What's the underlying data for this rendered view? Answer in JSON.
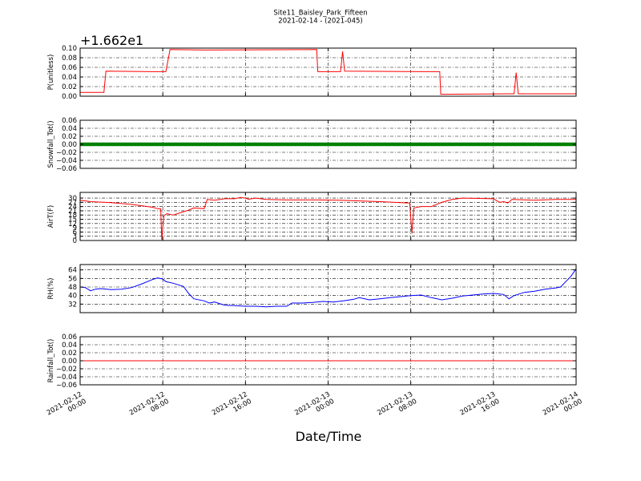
{
  "figure": {
    "title_line1": "Site11_Baisley_Park_Fifteen",
    "title_line2": "2021-02-14 - (2021-045)",
    "xlabel": "Date/Time"
  },
  "chart_data": [
    {
      "type": "line",
      "ylabel": "P(unitless)",
      "offset_text": "+1.662e1",
      "offset": 16.62,
      "ylim": [
        0.0,
        0.1
      ],
      "yticks": [
        0.0,
        0.02,
        0.04,
        0.06,
        0.08,
        0.1
      ],
      "ytick_labels": [
        "0.00",
        "0.02",
        "0.04",
        "0.06",
        "0.08",
        "0.10"
      ],
      "grid": true,
      "x": [
        0,
        1,
        2,
        3,
        4,
        5,
        6,
        7,
        8,
        9,
        10,
        11,
        12,
        13,
        14,
        15,
        16,
        17,
        18,
        19,
        20,
        21,
        22,
        23,
        24,
        25,
        26,
        27,
        28,
        29,
        30,
        31,
        32,
        33,
        34,
        35,
        36,
        37,
        38,
        39,
        40,
        41,
        42,
        43,
        44,
        45,
        46,
        47,
        48
      ],
      "series": [
        {
          "color": "#ff0000",
          "points": [
            [
              0,
              0.008
            ],
            [
              2.3,
              0.008
            ],
            [
              2.5,
              0.052
            ],
            [
              7.2,
              0.051
            ],
            [
              8.3,
              0.051
            ],
            [
              8.7,
              0.097
            ],
            [
              12.0,
              0.096
            ],
            [
              22.9,
              0.097
            ],
            [
              23.0,
              0.051
            ],
            [
              25.2,
              0.051
            ],
            [
              25.4,
              0.093
            ],
            [
              25.6,
              0.052
            ],
            [
              34.8,
              0.051
            ],
            [
              34.9,
              0.004
            ],
            [
              42.0,
              0.005
            ],
            [
              42.2,
              0.049
            ],
            [
              42.4,
              0.005
            ],
            [
              48.0,
              0.005
            ]
          ]
        }
      ]
    },
    {
      "type": "scatter",
      "ylabel": "Snowfall_Tot()",
      "ylim": [
        -0.06,
        0.06
      ],
      "yticks": [
        -0.06,
        -0.04,
        -0.02,
        0.0,
        0.02,
        0.04,
        0.06
      ],
      "ytick_labels": [
        "−0.06",
        "−0.04",
        "−0.02",
        "0.00",
        "0.02",
        "0.04",
        "0.06"
      ],
      "grid": true,
      "series": [
        {
          "color": "#008000",
          "points": [
            [
              0,
              0.0
            ],
            [
              48,
              0.0
            ]
          ]
        }
      ]
    },
    {
      "type": "line",
      "ylabel": "AirT(F)",
      "ylim": [
        0,
        34
      ],
      "yticks": [
        0,
        3,
        6,
        9,
        12,
        15,
        18,
        21,
        24,
        27,
        30
      ],
      "ytick_labels": [
        "0",
        "3",
        "6",
        "9",
        "12",
        "15",
        "18",
        "21",
        "24",
        "27",
        "30"
      ],
      "grid": true,
      "series": [
        {
          "color": "#ff0000",
          "points": [
            [
              0,
              28.5
            ],
            [
              1,
              27.5
            ],
            [
              3,
              26.8
            ],
            [
              5,
              25.5
            ],
            [
              7,
              23.5
            ],
            [
              7.5,
              22.5
            ],
            [
              7.8,
              22.3
            ],
            [
              7.9,
              0.5
            ],
            [
              8.1,
              17.5
            ],
            [
              8.4,
              19.0
            ],
            [
              9,
              18.0
            ],
            [
              10.5,
              21.5
            ],
            [
              11,
              23.0
            ],
            [
              12,
              22.5
            ],
            [
              12.3,
              29.0
            ],
            [
              13,
              28.5
            ],
            [
              14,
              29.5
            ],
            [
              15,
              29.5
            ],
            [
              15.5,
              30.5
            ],
            [
              16,
              30.0
            ],
            [
              16.3,
              29.2
            ],
            [
              17,
              30.0
            ],
            [
              18,
              29.0
            ],
            [
              20,
              28.7
            ],
            [
              23,
              28.7
            ],
            [
              25,
              28.5
            ],
            [
              27,
              28.0
            ],
            [
              29,
              27.5
            ],
            [
              31,
              26.8
            ],
            [
              31.9,
              26.5
            ],
            [
              32.1,
              5.0
            ],
            [
              32.3,
              23.0
            ],
            [
              33,
              24.0
            ],
            [
              34,
              24.0
            ],
            [
              35,
              27.0
            ],
            [
              36,
              29.0
            ],
            [
              37,
              30.0
            ],
            [
              40,
              29.5
            ],
            [
              40.6,
              27.0
            ],
            [
              41,
              27.5
            ],
            [
              41.4,
              26.5
            ],
            [
              41.8,
              29.0
            ],
            [
              44,
              28.5
            ],
            [
              46,
              29.0
            ],
            [
              48,
              29.0
            ]
          ]
        }
      ]
    },
    {
      "type": "line",
      "ylabel": "RH(%)",
      "ylim": [
        24,
        69
      ],
      "yticks": [
        32,
        40,
        48,
        56,
        64
      ],
      "ytick_labels": [
        "32",
        "40",
        "48",
        "56",
        "64"
      ],
      "grid": true,
      "series": [
        {
          "color": "#0000ff",
          "points": [
            [
              0,
              48
            ],
            [
              0.5,
              47.5
            ],
            [
              1,
              44.5
            ],
            [
              1.5,
              46
            ],
            [
              2,
              46.5
            ],
            [
              3,
              45.5
            ],
            [
              4,
              46
            ],
            [
              5,
              47.5
            ],
            [
              6,
              51
            ],
            [
              7,
              55
            ],
            [
              7.5,
              56.5
            ],
            [
              8,
              55.5
            ],
            [
              8.3,
              53
            ],
            [
              9,
              51.5
            ],
            [
              10,
              48.5
            ],
            [
              10.5,
              42
            ],
            [
              11,
              37
            ],
            [
              12,
              35
            ],
            [
              12.5,
              33
            ],
            [
              13,
              34
            ],
            [
              14,
              31
            ],
            [
              15,
              30.5
            ],
            [
              16,
              30
            ],
            [
              17,
              30
            ],
            [
              18,
              29.5
            ],
            [
              19,
              30
            ],
            [
              20,
              30
            ],
            [
              20.5,
              33
            ],
            [
              21.5,
              33
            ],
            [
              22.5,
              33.5
            ],
            [
              23.5,
              34.5
            ],
            [
              24.5,
              34
            ],
            [
              25.5,
              35
            ],
            [
              26.5,
              36.5
            ],
            [
              27,
              38
            ],
            [
              28,
              36
            ],
            [
              29,
              37
            ],
            [
              30,
              38
            ],
            [
              31,
              39
            ],
            [
              32,
              40
            ],
            [
              33,
              40.5
            ],
            [
              34,
              38
            ],
            [
              35,
              36
            ],
            [
              36,
              37.5
            ],
            [
              37,
              39.5
            ],
            [
              38,
              40.5
            ],
            [
              39,
              41.5
            ],
            [
              40,
              42
            ],
            [
              41,
              41
            ],
            [
              41.5,
              37
            ],
            [
              42,
              40
            ],
            [
              43,
              43
            ],
            [
              44,
              44
            ],
            [
              45,
              46
            ],
            [
              46,
              47
            ],
            [
              46.5,
              48
            ],
            [
              47,
              53
            ],
            [
              47.5,
              58
            ],
            [
              48,
              65
            ]
          ]
        }
      ]
    },
    {
      "type": "line",
      "ylabel": "Rainfall_Tot()",
      "ylim": [
        -0.06,
        0.06
      ],
      "yticks": [
        -0.06,
        -0.04,
        -0.02,
        0.0,
        0.02,
        0.04,
        0.06
      ],
      "ytick_labels": [
        "−0.06",
        "−0.04",
        "−0.02",
        "0.00",
        "0.02",
        "0.04",
        "0.06"
      ],
      "grid": true,
      "series": [
        {
          "color": "#ff0000",
          "points": [
            [
              0,
              0.0
            ],
            [
              48,
              0.0
            ]
          ]
        }
      ]
    }
  ],
  "x_axis": {
    "xlim": [
      0,
      48
    ],
    "ticks": [
      0,
      8,
      16,
      24,
      32,
      40,
      48
    ],
    "tick_labels": [
      [
        "2021-02-12",
        "00:00"
      ],
      [
        "2021-02-12",
        "08:00"
      ],
      [
        "2021-02-12",
        "16:00"
      ],
      [
        "2021-02-13",
        "00:00"
      ],
      [
        "2021-02-13",
        "08:00"
      ],
      [
        "2021-02-13",
        "16:00"
      ],
      [
        "2021-02-14",
        "00:00"
      ]
    ]
  }
}
